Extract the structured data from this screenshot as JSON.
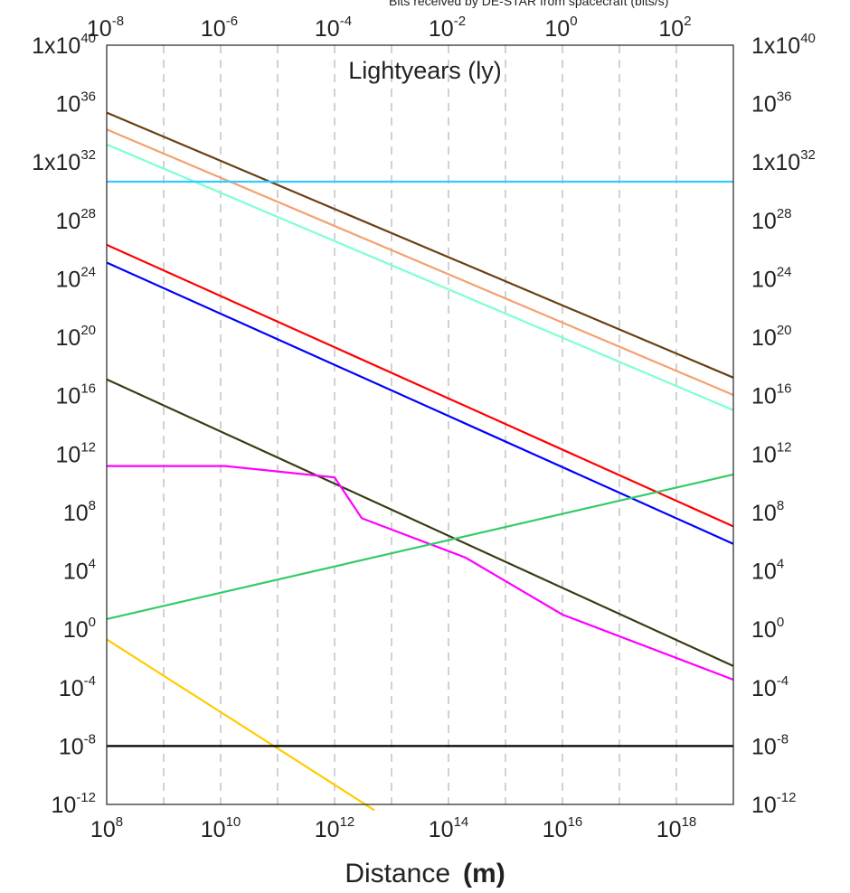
{
  "chart_data": {
    "type": "line",
    "x_scale": "log",
    "y_scale": "log",
    "xlim": [
      100000000,
      10000000000000000000
    ],
    "ylim": [
      1e-12,
      1e+40
    ],
    "grid": {
      "vertical": true,
      "horizontal": false,
      "style": "dashed"
    },
    "xlabel": "Distance",
    "xlabel_unit": "(m)",
    "secondary_x_title": "Lightyears (ly)",
    "top_note": "Bits received by DE-STAR from spacecraft (bits/s)",
    "x_ticks": [
      {
        "base": "10",
        "exp": "8",
        "value": 100000000
      },
      {
        "base": "10",
        "exp": "10",
        "value": 10000000000
      },
      {
        "base": "10",
        "exp": "12",
        "value": 1000000000000
      },
      {
        "base": "10",
        "exp": "14",
        "value": 100000000000000
      },
      {
        "base": "10",
        "exp": "16",
        "value": 10000000000000000
      },
      {
        "base": "10",
        "exp": "18",
        "value": 1000000000000000000
      }
    ],
    "top_x_ticks": [
      {
        "base": "10",
        "exp": "-8",
        "value": 1e-08
      },
      {
        "base": "10",
        "exp": "-6",
        "value": 1e-06
      },
      {
        "base": "10",
        "exp": "-4",
        "value": 0.0001
      },
      {
        "base": "10",
        "exp": "-2",
        "value": 0.01
      },
      {
        "base": "10",
        "exp": "0",
        "value": 1
      },
      {
        "base": "10",
        "exp": "2",
        "value": 100
      }
    ],
    "y_ticks": [
      {
        "base": "1x10",
        "exp": "40",
        "value": 1e+40
      },
      {
        "base": "10",
        "exp": "36",
        "value": 1e+36
      },
      {
        "base": "1x10",
        "exp": "32",
        "value": 1e+32
      },
      {
        "base": "10",
        "exp": "28",
        "value": 1e+28
      },
      {
        "base": "10",
        "exp": "24",
        "value": 1e+24
      },
      {
        "base": "10",
        "exp": "20",
        "value": 1e+20
      },
      {
        "base": "10",
        "exp": "16",
        "value": 1e+16
      },
      {
        "base": "10",
        "exp": "12",
        "value": 1000000000000.0
      },
      {
        "base": "10",
        "exp": "8",
        "value": 100000000
      },
      {
        "base": "10",
        "exp": "4",
        "value": 10000
      },
      {
        "base": "10",
        "exp": "0",
        "value": 1
      },
      {
        "base": "10",
        "exp": "-4",
        "value": 0.0001
      },
      {
        "base": "10",
        "exp": "-8",
        "value": 1e-08
      },
      {
        "base": "10",
        "exp": "-12",
        "value": 1e-12
      }
    ],
    "series": [
      {
        "color": "#6b3f14",
        "x": [
          100000000,
          10000000000000000000
        ],
        "y": [
          2.4e+35,
          1.7e+17
        ]
      },
      {
        "color": "#f4a070",
        "x": [
          100000000,
          10000000000000000000
        ],
        "y": [
          1.7e+34,
          1.1e+16
        ]
      },
      {
        "color": "#7fffd4",
        "x": [
          100000000,
          10000000000000000000
        ],
        "y": [
          1.6e+33,
          1000000000000000.0
        ]
      },
      {
        "color": "#33ccff",
        "x": [
          100000000,
          10000000000000000000
        ],
        "y": [
          4.5e+30,
          4.5e+30
        ]
      },
      {
        "color": "#ff0000",
        "x": [
          100000000,
          10000000000000000000
        ],
        "y": [
          2.1e+26,
          11000000.0
        ]
      },
      {
        "color": "#0000ff",
        "x": [
          100000000,
          10000000000000000000
        ],
        "y": [
          1.3e+25,
          700000.0
        ]
      },
      {
        "color": "#3a3a14",
        "x": [
          100000000,
          10000000000000000000
        ],
        "y": [
          1.3e+17,
          0.003
        ]
      },
      {
        "color": "#ff00ff",
        "x": [
          100000000,
          12000000000,
          1000000000000,
          3000000000000,
          200000000000000,
          10000000000000000,
          10000000000000000000
        ],
        "y": [
          150000000000.0,
          150000000000.0,
          25000000000.0,
          40000000.0,
          80000.0,
          10.0,
          0.00035
        ]
      },
      {
        "color": "#33cc66",
        "x": [
          100000000,
          10000000000000000000
        ],
        "y": [
          5,
          40000000000.0
        ]
      },
      {
        "color": "#ffcc00",
        "x": [
          100000000,
          5000000000000
        ],
        "y": [
          0.2,
          4e-13
        ]
      },
      {
        "color": "#000000",
        "x": [
          100000000,
          10000000000000000000
        ],
        "y": [
          1e-08,
          1e-08
        ]
      }
    ]
  }
}
